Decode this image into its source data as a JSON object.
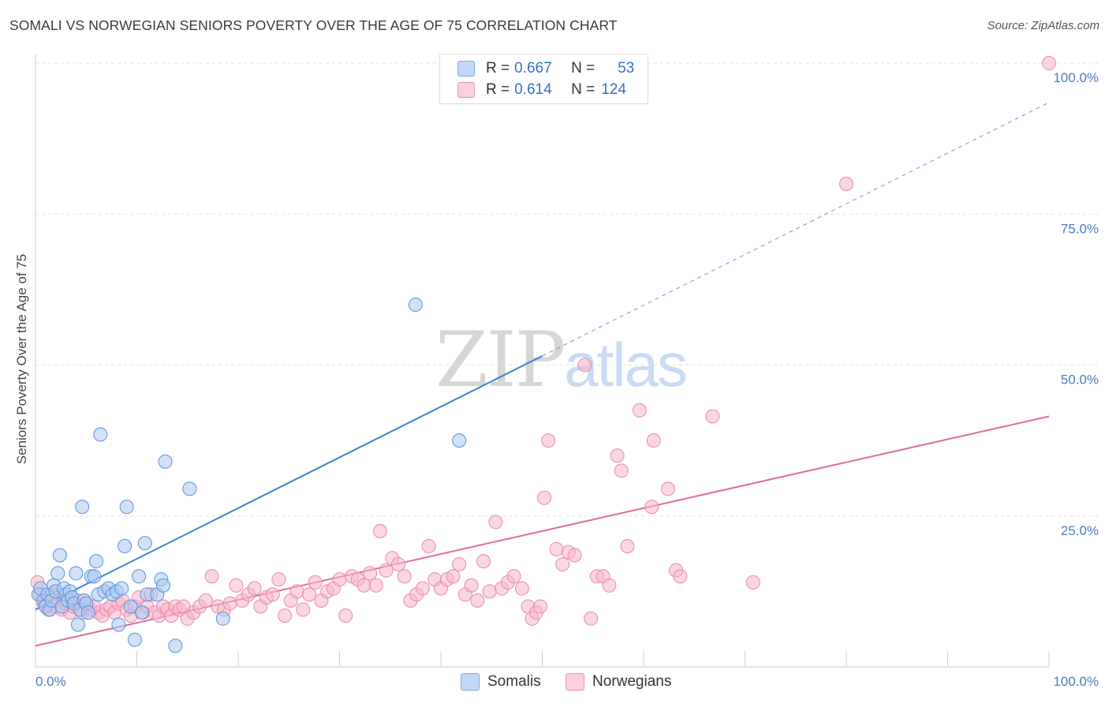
{
  "header": {
    "title": "SOMALI VS NORWEGIAN SENIORS POVERTY OVER THE AGE OF 75 CORRELATION CHART",
    "source": "Source: ZipAtlas.com"
  },
  "watermark": {
    "zip": "ZIP",
    "atlas": "atlas"
  },
  "legend": {
    "r_label": "R =",
    "n_label": "N =",
    "somali": {
      "r": "0.667",
      "n": "53",
      "color": "#a9c8f2"
    },
    "norwegian": {
      "r": "0.614",
      "n": "124",
      "color": "#f7b6ca"
    }
  },
  "chart_data": {
    "type": "scatter",
    "title": "SOMALI VS NORWEGIAN SENIORS POVERTY OVER THE AGE OF 75 CORRELATION CHART",
    "ylabel": "Seniors Poverty Over the Age of 75",
    "xlabel": "",
    "xlim": [
      0,
      100
    ],
    "ylim": [
      0,
      100
    ],
    "x_tick_labels": [
      "0.0%",
      "100.0%"
    ],
    "y_tick_labels": [
      "25.0%",
      "50.0%",
      "75.0%",
      "100.0%"
    ],
    "y_ticks": [
      25,
      50,
      75,
      100
    ],
    "grid": true,
    "legend_position": "top-center",
    "series": [
      {
        "name": "Somalis",
        "color": "#3a7fd5",
        "fill": "#a9c8f2",
        "points": [
          [
            0.3,
            12
          ],
          [
            0.5,
            13
          ],
          [
            0.8,
            11
          ],
          [
            1,
            10
          ],
          [
            1.2,
            12
          ],
          [
            1.4,
            9.5
          ],
          [
            1.6,
            11
          ],
          [
            1.8,
            13.5
          ],
          [
            2,
            12.5
          ],
          [
            2.2,
            15.5
          ],
          [
            2.4,
            18.5
          ],
          [
            2.6,
            10
          ],
          [
            2.8,
            13
          ],
          [
            3,
            12
          ],
          [
            3.2,
            11
          ],
          [
            3.4,
            12.5
          ],
          [
            3.6,
            11.5
          ],
          [
            3.8,
            10.5
          ],
          [
            4,
            15.5
          ],
          [
            4.2,
            7
          ],
          [
            4.4,
            9.5
          ],
          [
            4.6,
            26.5
          ],
          [
            4.8,
            11
          ],
          [
            5,
            10.5
          ],
          [
            5.2,
            9
          ],
          [
            5.5,
            15
          ],
          [
            5.8,
            15
          ],
          [
            6,
            17.5
          ],
          [
            6.2,
            12
          ],
          [
            6.4,
            38.5
          ],
          [
            6.8,
            12.5
          ],
          [
            7.2,
            13
          ],
          [
            7.6,
            12
          ],
          [
            8,
            12.5
          ],
          [
            8.2,
            7
          ],
          [
            8.5,
            13
          ],
          [
            8.8,
            20
          ],
          [
            9,
            26.5
          ],
          [
            9.4,
            10
          ],
          [
            9.8,
            4.5
          ],
          [
            10.2,
            15
          ],
          [
            10.5,
            9
          ],
          [
            10.8,
            20.5
          ],
          [
            11,
            12
          ],
          [
            12,
            12
          ],
          [
            12.4,
            14.5
          ],
          [
            12.6,
            13.5
          ],
          [
            12.8,
            34
          ],
          [
            13.8,
            3.5
          ],
          [
            15.2,
            29.5
          ],
          [
            18.5,
            8
          ],
          [
            37.5,
            60
          ],
          [
            41.8,
            37.5
          ]
        ],
        "trend": {
          "x0": 0,
          "y0": 9.5,
          "x1": 50,
          "y1": 51.5,
          "x_dash_end": 100,
          "y_dash_end": 93.5
        }
      },
      {
        "name": "Norwegians",
        "color": "#e46b97",
        "fill": "#f7b6ca",
        "points": [
          [
            0.2,
            14
          ],
          [
            0.5,
            12
          ],
          [
            0.8,
            10.5
          ],
          [
            1,
            11
          ],
          [
            1.3,
            9.5
          ],
          [
            1.6,
            12
          ],
          [
            2,
            10
          ],
          [
            2.3,
            11
          ],
          [
            2.6,
            9.5
          ],
          [
            3,
            10.5
          ],
          [
            3.4,
            9
          ],
          [
            3.8,
            10
          ],
          [
            4.2,
            11
          ],
          [
            4.6,
            9
          ],
          [
            5,
            10.5
          ],
          [
            5.4,
            9.5
          ],
          [
            5.8,
            10
          ],
          [
            6.2,
            9
          ],
          [
            6.6,
            8.5
          ],
          [
            7,
            9.5
          ],
          [
            7.4,
            10
          ],
          [
            7.8,
            9
          ],
          [
            8.2,
            10.5
          ],
          [
            8.6,
            11
          ],
          [
            9,
            9.5
          ],
          [
            9.4,
            8.5
          ],
          [
            9.8,
            10
          ],
          [
            10.2,
            11.5
          ],
          [
            10.6,
            9
          ],
          [
            11,
            10
          ],
          [
            11.4,
            12
          ],
          [
            11.8,
            9
          ],
          [
            12.2,
            8.5
          ],
          [
            12.6,
            10
          ],
          [
            13,
            9.5
          ],
          [
            13.4,
            8.5
          ],
          [
            13.8,
            10
          ],
          [
            14.2,
            9.5
          ],
          [
            14.6,
            10
          ],
          [
            15,
            8
          ],
          [
            15.6,
            9
          ],
          [
            16.2,
            10
          ],
          [
            16.8,
            11
          ],
          [
            17.4,
            15
          ],
          [
            18,
            10
          ],
          [
            18.6,
            9.5
          ],
          [
            19.2,
            10.5
          ],
          [
            19.8,
            13.5
          ],
          [
            20.4,
            11
          ],
          [
            21,
            12
          ],
          [
            21.6,
            13
          ],
          [
            22.2,
            10
          ],
          [
            22.8,
            11.5
          ],
          [
            23.4,
            12
          ],
          [
            24,
            14.5
          ],
          [
            24.6,
            8.5
          ],
          [
            25.2,
            11
          ],
          [
            25.8,
            12.5
          ],
          [
            26.4,
            9.5
          ],
          [
            27,
            12
          ],
          [
            27.6,
            14
          ],
          [
            28.2,
            11
          ],
          [
            28.8,
            12.5
          ],
          [
            29.4,
            13
          ],
          [
            30,
            14.5
          ],
          [
            30.6,
            8.5
          ],
          [
            31.2,
            15
          ],
          [
            31.8,
            14.5
          ],
          [
            32.4,
            13.5
          ],
          [
            33,
            15.5
          ],
          [
            33.6,
            13.5
          ],
          [
            34,
            22.5
          ],
          [
            34.6,
            16
          ],
          [
            35.2,
            18
          ],
          [
            35.8,
            17
          ],
          [
            36.4,
            15
          ],
          [
            37,
            11
          ],
          [
            37.6,
            12
          ],
          [
            38.2,
            13
          ],
          [
            38.8,
            20
          ],
          [
            39.4,
            14.5
          ],
          [
            40,
            13
          ],
          [
            40.6,
            14.5
          ],
          [
            41.2,
            15
          ],
          [
            41.8,
            17
          ],
          [
            42.4,
            12
          ],
          [
            43,
            13.5
          ],
          [
            43.6,
            11
          ],
          [
            44.2,
            17.5
          ],
          [
            44.8,
            12.5
          ],
          [
            45.4,
            24
          ],
          [
            46,
            13
          ],
          [
            46.6,
            14
          ],
          [
            47.2,
            15
          ],
          [
            48,
            13
          ],
          [
            48.6,
            10
          ],
          [
            49,
            8
          ],
          [
            49.4,
            9
          ],
          [
            49.8,
            10
          ],
          [
            50.2,
            28
          ],
          [
            50.6,
            37.5
          ],
          [
            51.4,
            19.5
          ],
          [
            52,
            17
          ],
          [
            52.6,
            19
          ],
          [
            53.2,
            18.5
          ],
          [
            54.2,
            50
          ],
          [
            54.8,
            8
          ],
          [
            55.4,
            15
          ],
          [
            56,
            15
          ],
          [
            56.6,
            13.5
          ],
          [
            57.4,
            35
          ],
          [
            57.8,
            32.5
          ],
          [
            58.4,
            20
          ],
          [
            59.6,
            42.5
          ],
          [
            60.8,
            26.5
          ],
          [
            61,
            37.5
          ],
          [
            62.4,
            29.5
          ],
          [
            63.2,
            16
          ],
          [
            63.6,
            15
          ],
          [
            66.8,
            41.5
          ],
          [
            70.8,
            14
          ],
          [
            80,
            80
          ],
          [
            100,
            100
          ]
        ],
        "trend": {
          "x0": 0,
          "y0": 3.5,
          "x1": 100,
          "y1": 41.5
        }
      }
    ]
  }
}
